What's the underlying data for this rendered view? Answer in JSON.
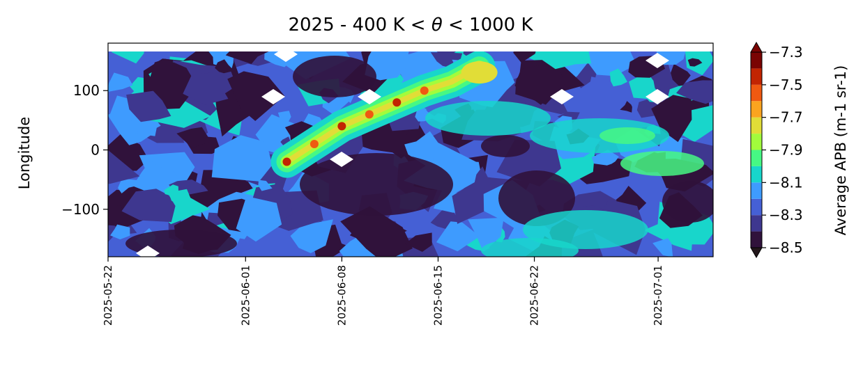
{
  "chart_data": {
    "type": "heatmap",
    "subtype": "filled-contour",
    "title": "2025 - 400 K < θ < 1000 K",
    "title_parts": {
      "prefix": "2025 - 400 K < ",
      "symbol": "θ",
      "suffix": " < 1000 K"
    },
    "xlabel": "",
    "ylabel": "Longitude",
    "x_axis": {
      "type": "date",
      "range": [
        "2025-05-22",
        "2025-07-05"
      ],
      "tick_labels": [
        "2025-05-22",
        "2025-06-01",
        "2025-06-08",
        "2025-06-15",
        "2025-06-22",
        "2025-07-01"
      ]
    },
    "y_axis": {
      "range": [
        -180,
        180
      ],
      "ticks": [
        100,
        0,
        -100
      ],
      "tick_labels": [
        "100",
        "0",
        "−100"
      ]
    },
    "colorbar": {
      "label": "Average APB (m-1 sr-1)",
      "range": [
        -8.5,
        -7.3
      ],
      "levels": [
        -8.5,
        -8.4,
        -8.3,
        -8.2,
        -8.1,
        -8.0,
        -7.9,
        -7.8,
        -7.7,
        -7.6,
        -7.5,
        -7.4,
        -7.3
      ],
      "tick_values": [
        -7.3,
        -7.5,
        -7.7,
        -7.9,
        -8.1,
        -8.3,
        -8.5
      ],
      "tick_labels": [
        "−7.3",
        "−7.5",
        "−7.7",
        "−7.9",
        "−8.1",
        "−8.3",
        "−8.5"
      ],
      "extend": "both",
      "colormap": "turbo",
      "colors": [
        "#30123b",
        "#3e378f",
        "#4560d5",
        "#3e9bfe",
        "#18d6cb",
        "#46f884",
        "#a2fc3c",
        "#e1dd37",
        "#fba41f",
        "#ef5911",
        "#c22402",
        "#7a0403"
      ],
      "under_color": "#23171b",
      "over_color": "#7a0403"
    },
    "features": [
      {
        "description_source": "visible high-value band",
        "points": [
          [
            "2025-06-04",
            -20
          ],
          [
            "2025-06-06",
            10
          ],
          [
            "2025-06-08",
            40
          ],
          [
            "2025-06-10",
            60
          ],
          [
            "2025-06-12",
            80
          ],
          [
            "2025-06-14",
            100
          ],
          [
            "2025-06-16",
            115
          ],
          [
            "2025-06-18",
            140
          ]
        ]
      }
    ],
    "grid": false
  },
  "colors": {
    "background": "#ffffff",
    "axes": "#000000"
  }
}
